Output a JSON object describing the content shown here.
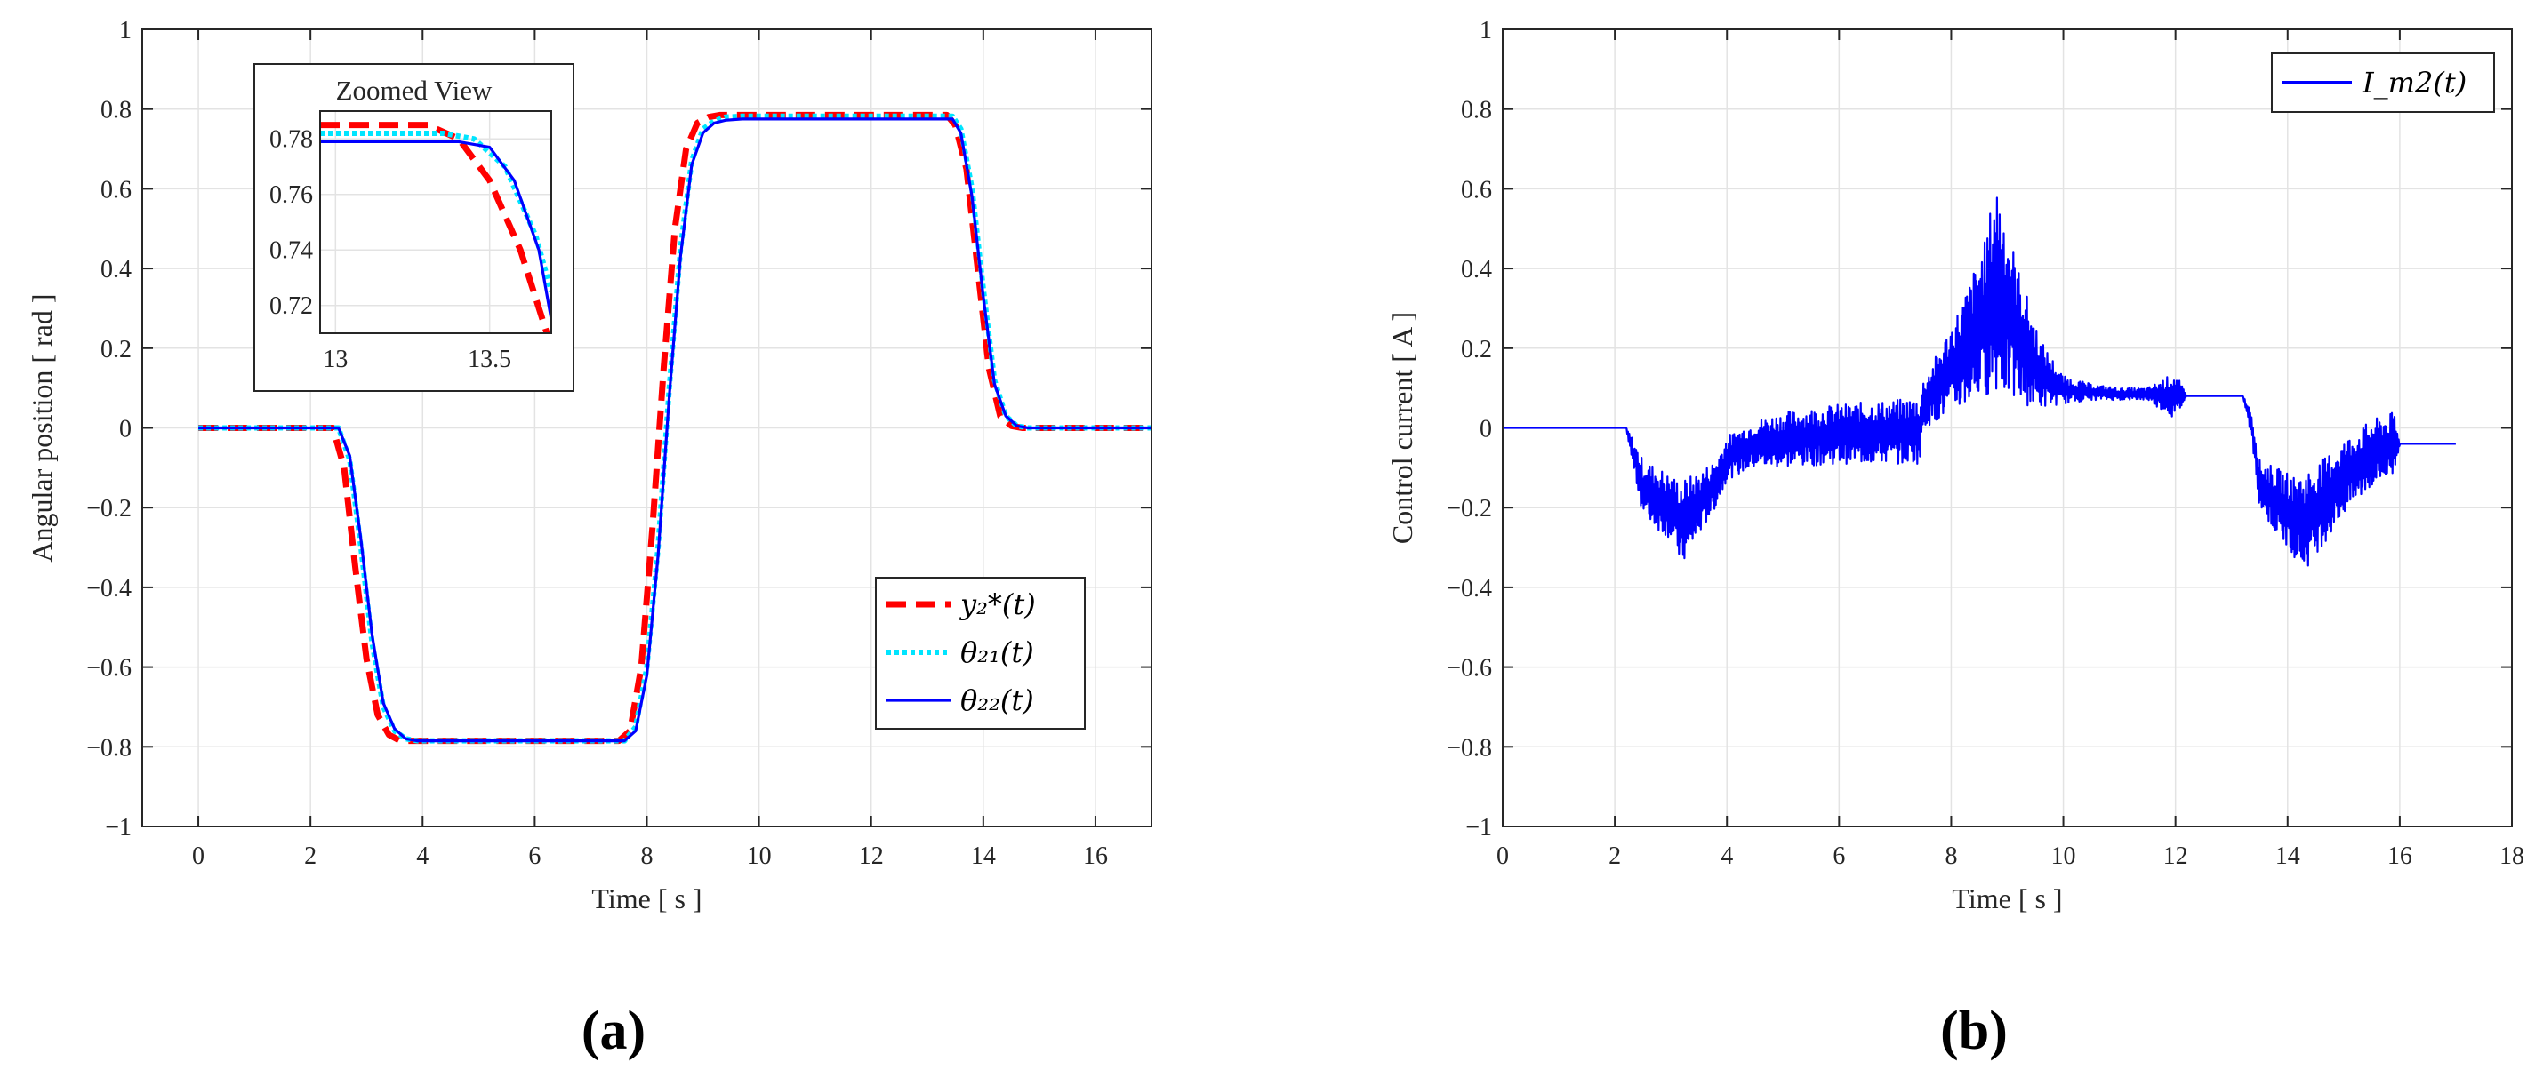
{
  "chart_data": [
    {
      "type": "line",
      "panel_label": "(a)",
      "xlabel": "Time [ s ]",
      "ylabel": "Angular position [ rad ]",
      "xlim": [
        -1,
        17
      ],
      "ylim": [
        -1,
        1
      ],
      "xticks": [
        0,
        2,
        4,
        6,
        8,
        10,
        12,
        14,
        16
      ],
      "yticks": [
        -1,
        -0.8,
        -0.6,
        -0.4,
        -0.2,
        0,
        0.2,
        0.4,
        0.6,
        0.8,
        1
      ],
      "xtick_labels": [
        "0",
        "2",
        "4",
        "6",
        "8",
        "10",
        "12",
        "14",
        "16"
      ],
      "ytick_labels": [
        "−1",
        "−0.8",
        "−0.6",
        "−0.4",
        "−0.2",
        "0",
        "0.2",
        "0.4",
        "0.6",
        "0.8",
        "1"
      ],
      "grid": true,
      "legend_position": "bottom-right",
      "series": [
        {
          "name": "y₂*(t)",
          "color": "#ff0000",
          "style": "dashed",
          "x": [
            0,
            2.4,
            2.6,
            2.8,
            3.0,
            3.2,
            3.4,
            3.6,
            3.8,
            7.5,
            7.7,
            7.9,
            8.1,
            8.3,
            8.5,
            8.7,
            8.9,
            9.1,
            9.3,
            9.5,
            13.35,
            13.5,
            13.7,
            13.9,
            14.1,
            14.3,
            14.5,
            14.7,
            17
          ],
          "y": [
            0,
            0,
            -0.1,
            -0.35,
            -0.58,
            -0.72,
            -0.77,
            -0.785,
            -0.785,
            -0.785,
            -0.76,
            -0.6,
            -0.25,
            0.15,
            0.5,
            0.7,
            0.765,
            0.78,
            0.785,
            0.785,
            0.785,
            0.76,
            0.65,
            0.4,
            0.15,
            0.03,
            0.005,
            0,
            0
          ]
        },
        {
          "name": "θ₂₁(t)",
          "color": "#00e5ff",
          "style": "dotted",
          "x": [
            0,
            2.5,
            2.7,
            2.9,
            3.1,
            3.3,
            3.5,
            3.7,
            3.9,
            4.2,
            7.6,
            7.8,
            8.0,
            8.2,
            8.4,
            8.6,
            8.8,
            9.0,
            9.2,
            9.4,
            9.7,
            13.45,
            13.6,
            13.8,
            14.0,
            14.2,
            14.4,
            14.6,
            14.8,
            17
          ],
          "y": [
            0,
            0,
            -0.08,
            -0.3,
            -0.54,
            -0.7,
            -0.76,
            -0.78,
            -0.785,
            -0.785,
            -0.785,
            -0.75,
            -0.6,
            -0.3,
            0.1,
            0.45,
            0.67,
            0.75,
            0.77,
            0.78,
            0.782,
            0.782,
            0.75,
            0.6,
            0.35,
            0.12,
            0.03,
            0.005,
            0,
            0
          ]
        },
        {
          "name": "θ₂₂(t)",
          "color": "#0000ff",
          "style": "solid",
          "x": [
            0,
            2.5,
            2.7,
            2.9,
            3.1,
            3.3,
            3.5,
            3.7,
            3.9,
            4.2,
            7.6,
            7.8,
            8.0,
            8.2,
            8.4,
            8.6,
            8.8,
            9.0,
            9.2,
            9.4,
            9.7,
            13.45,
            13.6,
            13.8,
            14.0,
            14.2,
            14.4,
            14.6,
            14.8,
            17
          ],
          "y": [
            0,
            0,
            -0.07,
            -0.28,
            -0.52,
            -0.69,
            -0.755,
            -0.78,
            -0.785,
            -0.785,
            -0.785,
            -0.76,
            -0.62,
            -0.32,
            0.08,
            0.43,
            0.66,
            0.74,
            0.765,
            0.772,
            0.775,
            0.775,
            0.74,
            0.58,
            0.33,
            0.11,
            0.03,
            0.005,
            0,
            0
          ]
        }
      ],
      "inset": {
        "title": "Zoomed View",
        "xlim": [
          12.95,
          13.7
        ],
        "ylim": [
          0.71,
          0.79
        ],
        "xticks": [
          13,
          13.5
        ],
        "yticks": [
          0.72,
          0.74,
          0.76,
          0.78
        ],
        "xtick_labels": [
          "13",
          "13.5"
        ],
        "ytick_labels": [
          "0.72",
          "0.74",
          "0.76",
          "0.78"
        ],
        "series": [
          {
            "color": "#ff0000",
            "style": "dashed",
            "x": [
              12.95,
              13.3,
              13.4,
              13.5,
              13.6,
              13.7
            ],
            "y": [
              0.785,
              0.785,
              0.78,
              0.765,
              0.74,
              0.705
            ]
          },
          {
            "color": "#00e5ff",
            "style": "dotted",
            "x": [
              12.95,
              13.35,
              13.45,
              13.55,
              13.65,
              13.7
            ],
            "y": [
              0.782,
              0.782,
              0.78,
              0.77,
              0.745,
              0.725
            ]
          },
          {
            "color": "#0000ff",
            "style": "solid",
            "x": [
              12.95,
              13.4,
              13.5,
              13.58,
              13.66,
              13.7
            ],
            "y": [
              0.779,
              0.779,
              0.777,
              0.765,
              0.74,
              0.715
            ]
          }
        ]
      }
    },
    {
      "type": "line",
      "panel_label": "(b)",
      "xlabel": "Time [ s ]",
      "ylabel": "Control current [ A ]",
      "xlim": [
        0,
        18
      ],
      "ylim": [
        -1,
        1
      ],
      "xticks": [
        0,
        2,
        4,
        6,
        8,
        10,
        12,
        14,
        16,
        18
      ],
      "yticks": [
        -1,
        -0.8,
        -0.6,
        -0.4,
        -0.2,
        0,
        0.2,
        0.4,
        0.6,
        0.8,
        1
      ],
      "xtick_labels": [
        "0",
        "2",
        "4",
        "6",
        "8",
        "10",
        "12",
        "14",
        "16",
        "18"
      ],
      "ytick_labels": [
        "−1",
        "−0.8",
        "−0.6",
        "−0.4",
        "−0.2",
        "0",
        "0.2",
        "0.4",
        "0.6",
        "0.8",
        "1"
      ],
      "grid": true,
      "legend_position": "top-right",
      "series": [
        {
          "name": "I_m2(t)",
          "color": "#0000ff",
          "style": "solid",
          "envelope": {
            "x": [
              0,
              2.2,
              2.3,
              2.5,
              2.8,
              3.0,
              3.2,
              3.5,
              3.8,
              4.0,
              4.5,
              5.0,
              6.0,
              7.0,
              7.45,
              7.5,
              7.8,
              8.2,
              8.6,
              8.8,
              9.2,
              9.6,
              10.0,
              10.5,
              11.0,
              11.5,
              12.0,
              12.2,
              13.2,
              13.35,
              13.5,
              13.8,
              14.1,
              14.3,
              14.6,
              15.0,
              15.5,
              15.9,
              16.0,
              17.0
            ],
            "upper": [
              0,
              0,
              -0.02,
              -0.08,
              -0.1,
              -0.12,
              -0.13,
              -0.11,
              -0.08,
              -0.02,
              0.02,
              0.04,
              0.06,
              0.07,
              0.08,
              0.12,
              0.2,
              0.32,
              0.47,
              0.63,
              0.4,
              0.22,
              0.13,
              0.11,
              0.1,
              0.1,
              0.14,
              0.08,
              0.08,
              0.05,
              -0.08,
              -0.1,
              -0.12,
              -0.11,
              -0.08,
              -0.03,
              0.02,
              0.04,
              -0.04,
              -0.04
            ],
            "lower": [
              0,
              0,
              -0.08,
              -0.22,
              -0.26,
              -0.28,
              -0.35,
              -0.27,
              -0.2,
              -0.13,
              -0.1,
              -0.1,
              -0.09,
              -0.09,
              -0.09,
              0.0,
              0.02,
              0.05,
              0.08,
              0.09,
              0.06,
              0.05,
              0.06,
              0.07,
              0.07,
              0.07,
              0.02,
              0.08,
              0.08,
              -0.02,
              -0.2,
              -0.27,
              -0.32,
              -0.36,
              -0.3,
              -0.22,
              -0.15,
              -0.12,
              -0.04,
              -0.04
            ]
          }
        }
      ]
    }
  ]
}
